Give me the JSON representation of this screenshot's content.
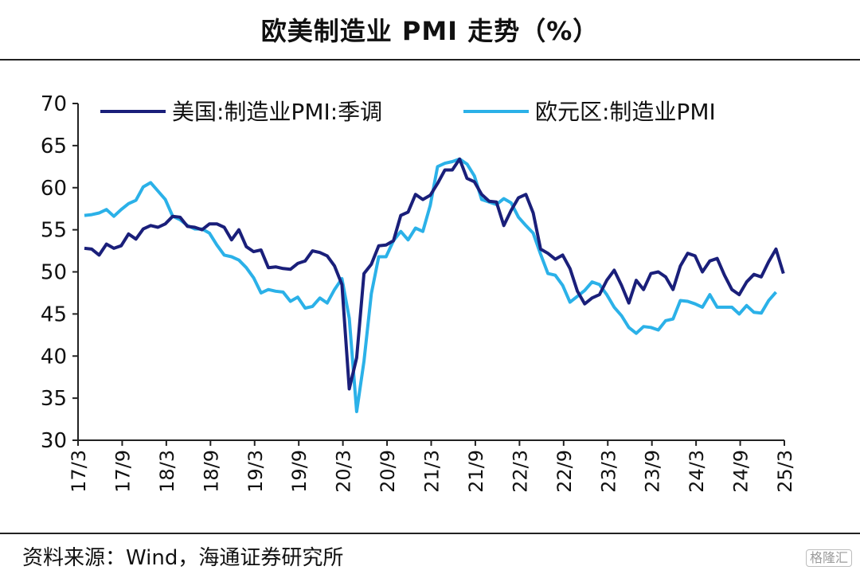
{
  "header": {
    "title": "欧美制造业 PMI 走势（%）"
  },
  "footer": {
    "source": "资料来源：Wind，海通证券研究所",
    "watermark": "格隆汇"
  },
  "chart_data": {
    "type": "line",
    "ylim": [
      30,
      70
    ],
    "yticks": [
      30,
      35,
      40,
      45,
      50,
      55,
      60,
      65,
      70
    ],
    "xticks": [
      "17/3",
      "17/9",
      "18/3",
      "18/9",
      "19/3",
      "19/9",
      "20/3",
      "20/9",
      "21/3",
      "21/9",
      "22/3",
      "22/9",
      "23/3",
      "23/9",
      "24/3",
      "24/9",
      "25/3"
    ],
    "grid": false,
    "legend_position": "top",
    "x_start": "2017-03",
    "series": [
      {
        "name": "美国:制造业PMI:季调",
        "color": "#1a1f7a",
        "values": [
          52.8,
          52.7,
          52.0,
          53.3,
          52.8,
          53.1,
          54.5,
          53.9,
          55.1,
          55.5,
          55.3,
          55.7,
          56.6,
          56.5,
          55.4,
          55.3,
          55.0,
          55.7,
          55.7,
          55.3,
          53.8,
          55.0,
          53.0,
          52.4,
          52.6,
          50.5,
          50.6,
          50.4,
          50.3,
          51.0,
          51.3,
          52.5,
          52.3,
          51.9,
          50.7,
          48.5,
          36.1,
          39.8,
          49.8,
          50.9,
          53.1,
          53.2,
          53.7,
          56.7,
          57.1,
          59.2,
          58.6,
          59.1,
          60.5,
          62.1,
          62.1,
          63.4,
          61.1,
          60.7,
          59.2,
          58.4,
          58.3,
          55.5,
          57.3,
          58.8,
          59.2,
          57.0,
          52.7,
          52.2,
          51.5,
          52.0,
          50.4,
          47.7,
          46.2,
          46.9,
          47.3,
          49.0,
          50.2,
          48.4,
          46.3,
          49.0,
          47.9,
          49.8,
          50.0,
          49.4,
          47.9,
          50.7,
          52.2,
          51.9,
          50.0,
          51.3,
          51.6,
          49.6,
          47.9,
          47.3,
          48.8,
          49.7,
          49.4,
          51.2,
          52.7,
          49.8
        ]
      },
      {
        "name": "欧元区:制造业PMI",
        "color": "#2bb1e8",
        "values": [
          56.7,
          56.8,
          57.0,
          57.4,
          56.6,
          57.4,
          58.1,
          58.5,
          60.1,
          60.6,
          59.6,
          58.6,
          56.6,
          56.2,
          55.5,
          55.1,
          55.1,
          54.6,
          53.2,
          52.0,
          51.8,
          51.4,
          50.5,
          49.3,
          47.5,
          47.9,
          47.7,
          47.6,
          46.5,
          47.0,
          45.7,
          45.9,
          46.9,
          46.3,
          47.9,
          49.2,
          44.5,
          33.4,
          39.4,
          47.4,
          51.8,
          51.8,
          53.7,
          54.8,
          53.8,
          55.2,
          54.8,
          57.9,
          62.5,
          62.9,
          63.1,
          63.4,
          62.8,
          61.4,
          58.6,
          58.3,
          58.0,
          58.7,
          58.2,
          56.5,
          55.5,
          54.6,
          52.1,
          49.8,
          49.6,
          48.4,
          46.4,
          47.1,
          47.8,
          48.8,
          48.5,
          47.3,
          45.8,
          44.8,
          43.4,
          42.7,
          43.5,
          43.4,
          43.1,
          44.2,
          44.4,
          46.6,
          46.5,
          46.2,
          45.8,
          47.3,
          45.8,
          45.8,
          45.8,
          45.0,
          46.0,
          45.2,
          45.1,
          46.6,
          47.6
        ]
      }
    ]
  }
}
